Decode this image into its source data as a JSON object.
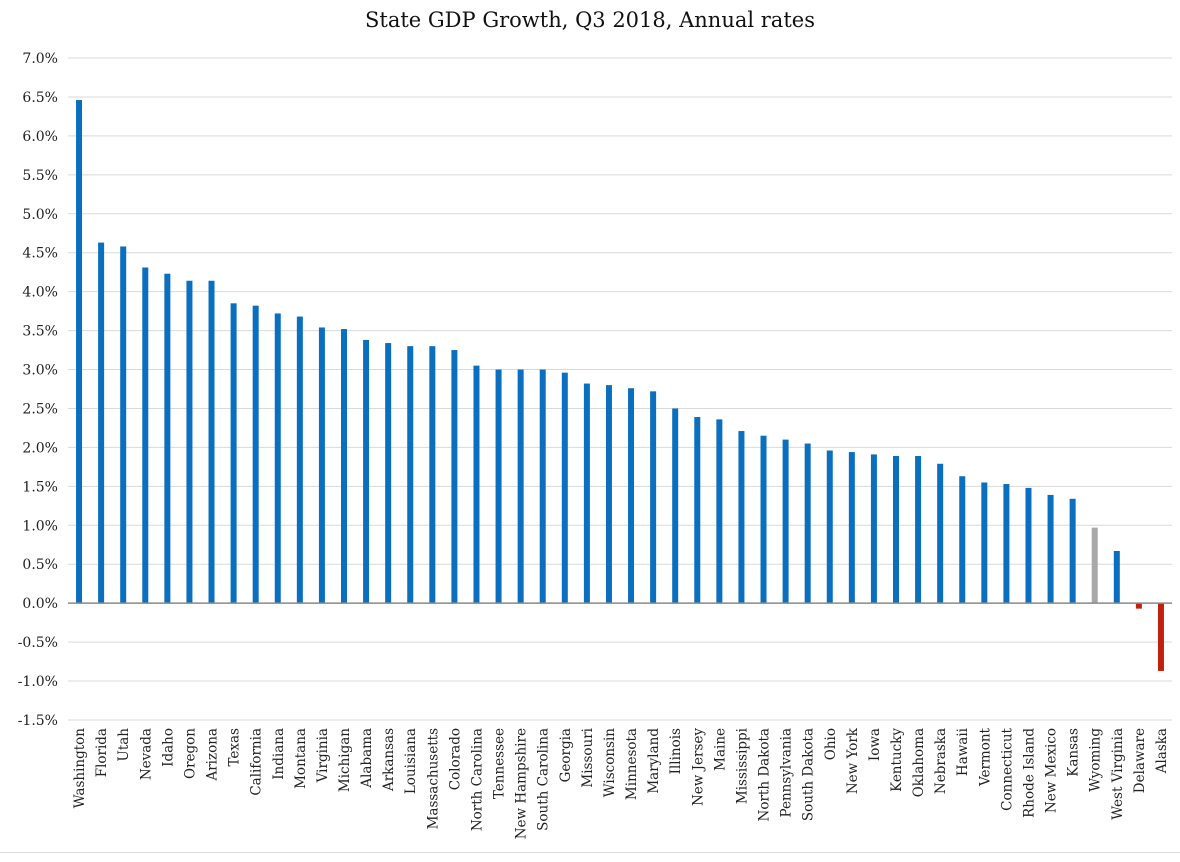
{
  "chart_data": {
    "type": "bar",
    "title": "State GDP Growth, Q3 2018, Annual rates",
    "xlabel": "",
    "ylabel": "",
    "ylim": [
      -1.5,
      7.0
    ],
    "yticks": [
      7.0,
      6.5,
      6.0,
      5.5,
      5.0,
      4.5,
      4.0,
      3.5,
      3.0,
      2.5,
      2.0,
      1.5,
      1.0,
      0.5,
      0.0,
      -0.5,
      -1.0,
      -1.5
    ],
    "ytick_labels": [
      "7.0%",
      "6.5%",
      "6.0%",
      "5.5%",
      "5.0%",
      "4.5%",
      "4.0%",
      "3.5%",
      "3.0%",
      "2.5%",
      "2.0%",
      "1.5%",
      "1.0%",
      "0.5%",
      "0.0%",
      "-0.5%",
      "-1.0%",
      "-1.5%"
    ],
    "grid": true,
    "legend": "none",
    "categories": [
      "Washington",
      "Florida",
      "Utah",
      "Nevada",
      "Idaho",
      "Oregon",
      "Arizona",
      "Texas",
      "California",
      "Indiana",
      "Montana",
      "Virginia",
      "Michigan",
      "Alabama",
      "Arkansas",
      "Louisiana",
      "Massachusetts",
      "Colorado",
      "North Carolina",
      "Tennessee",
      "New Hampshire",
      "South Carolina",
      "Georgia",
      "Missouri",
      "Wisconsin",
      "Minnesota",
      "Maryland",
      "Illinois",
      "New Jersey",
      "Maine",
      "Mississippi",
      "North Dakota",
      "Pennsylvania",
      "South Dakota",
      "Ohio",
      "New York",
      "Iowa",
      "Kentucky",
      "Oklahoma",
      "Nebraska",
      "Hawaii",
      "Vermont",
      "Connecticut",
      "Rhode Island",
      "New Mexico",
      "Kansas",
      "Wyoming",
      "West Virginia",
      "Delaware",
      "Alaska"
    ],
    "values": [
      6.46,
      4.63,
      4.58,
      4.31,
      4.23,
      4.14,
      4.14,
      3.85,
      3.82,
      3.72,
      3.68,
      3.54,
      3.52,
      3.38,
      3.34,
      3.3,
      3.3,
      3.25,
      3.05,
      3.0,
      3.0,
      3.0,
      2.96,
      2.82,
      2.8,
      2.76,
      2.72,
      2.5,
      2.39,
      2.36,
      2.21,
      2.15,
      2.1,
      2.05,
      1.96,
      1.94,
      1.91,
      1.89,
      1.89,
      1.79,
      1.63,
      1.55,
      1.53,
      1.48,
      1.39,
      1.34,
      0.97,
      0.67,
      -0.07,
      -0.87
    ],
    "colors": {
      "positive": "#0a6fbf",
      "highlight": "#a8a8a8",
      "negative": "#c0200d",
      "grid": "#d9d9d9",
      "zero_line": "#8a8a8a"
    },
    "highlight_categories": [
      "Wyoming"
    ]
  }
}
